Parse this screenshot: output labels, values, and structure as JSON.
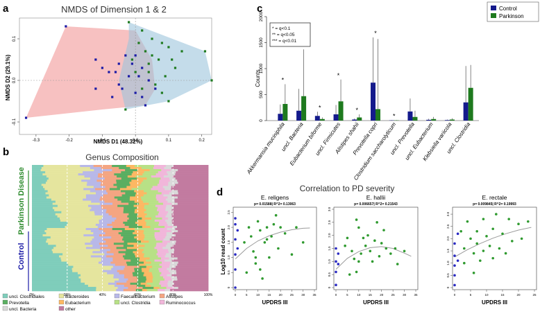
{
  "panels": {
    "a": "a",
    "b": "b",
    "c": "c",
    "d": "d"
  },
  "chart_data": [
    {
      "id": "nmds",
      "type": "scatter",
      "title": "NMDS of Dimension 1 & 2",
      "xlabel": "NMDS D1 (48.32%)",
      "ylabel": "NMDS D2 (29.1%)",
      "xlim": [
        -0.35,
        0.23
      ],
      "ylim": [
        -0.13,
        0.15
      ],
      "xticks": [
        "-0.3",
        "-0.2",
        "-0.1",
        "0.0",
        "0.1",
        "0.2"
      ],
      "xtick_values": [
        -0.3,
        -0.2,
        -0.1,
        0.0,
        0.1,
        0.2
      ],
      "yticks": [
        "-0.1",
        "0.0",
        "0.1"
      ],
      "ytick_values": [
        -0.1,
        0.0,
        0.1
      ],
      "colors": {
        "control": "#1a1aa6",
        "parkinson": "#1f7a1f",
        "control_hull": "#f4a6a6",
        "parkinson_hull": "#9cc5dc"
      },
      "control_hull": [
        [
          -0.21,
          0.13
        ],
        [
          -0.33,
          -0.09
        ],
        [
          -0.1,
          -0.07
        ],
        [
          0.03,
          -0.06
        ],
        [
          0.06,
          -0.02
        ],
        [
          0.05,
          0.05
        ],
        [
          0.0,
          0.12
        ]
      ],
      "parkinson_hull": [
        [
          -0.02,
          0.14
        ],
        [
          0.21,
          0.07
        ],
        [
          0.23,
          0.0
        ],
        [
          0.1,
          -0.05
        ],
        [
          -0.03,
          -0.07
        ],
        [
          -0.05,
          0.0
        ],
        [
          -0.02,
          0.1
        ]
      ],
      "control_points": [
        [
          -0.21,
          0.13
        ],
        [
          -0.33,
          -0.09
        ],
        [
          -0.12,
          0.05
        ],
        [
          -0.1,
          0.03
        ],
        [
          -0.08,
          0.02
        ],
        [
          -0.06,
          0.02
        ],
        [
          -0.05,
          -0.01
        ],
        [
          -0.04,
          -0.02
        ],
        [
          -0.02,
          0.01
        ],
        [
          -0.01,
          0.04
        ],
        [
          0.0,
          -0.03
        ],
        [
          0.01,
          0.01
        ],
        [
          0.02,
          -0.04
        ],
        [
          0.03,
          -0.06
        ],
        [
          0.02,
          0.03
        ],
        [
          -0.03,
          0.06
        ],
        [
          0.04,
          0.0
        ],
        [
          -0.07,
          -0.04
        ],
        [
          0.0,
          0.06
        ],
        [
          -0.12,
          -0.02
        ],
        [
          0.06,
          -0.02
        ],
        [
          -0.05,
          0.04
        ]
      ],
      "parkinson_points": [
        [
          -0.02,
          0.14
        ],
        [
          0.02,
          0.12
        ],
        [
          0.05,
          0.1
        ],
        [
          0.08,
          0.09
        ],
        [
          0.1,
          0.08
        ],
        [
          0.14,
          0.07
        ],
        [
          0.21,
          0.07
        ],
        [
          0.23,
          0.0
        ],
        [
          0.12,
          0.03
        ],
        [
          0.09,
          0.01
        ],
        [
          0.07,
          0.05
        ],
        [
          0.04,
          0.02
        ],
        [
          0.03,
          0.07
        ],
        [
          0.01,
          0.09
        ],
        [
          -0.01,
          0.05
        ],
        [
          0.06,
          -0.01
        ],
        [
          0.08,
          -0.03
        ],
        [
          0.1,
          -0.05
        ],
        [
          0.02,
          -0.02
        ],
        [
          -0.03,
          -0.07
        ],
        [
          0.11,
          0.05
        ],
        [
          0.04,
          0.04
        ],
        [
          0.0,
          0.02
        ],
        [
          0.05,
          0.06
        ]
      ]
    },
    {
      "id": "genus",
      "type": "bar",
      "title": "Genus Composition",
      "group_labels": [
        "Parkinson Disease",
        "Control"
      ],
      "xticks": [
        "0%",
        "20%",
        "40%",
        "60%",
        "80%",
        "100%"
      ],
      "legend": [
        "uncl. Clostridiales",
        "Bacteroides",
        "Faecalibacterium",
        "Alistipes",
        "Prevotella",
        "Eubacterium",
        "uncl. Clostridia",
        "Ruminococcus",
        "uncl. Bacteria",
        "other"
      ],
      "colors": [
        "#7fcdbb",
        "#e5e59e",
        "#b8b8e8",
        "#f4a582",
        "#5aae61",
        "#fdb863",
        "#b8e186",
        "#f1b6da",
        "#d9d9d9",
        "#c27ba0"
      ]
    },
    {
      "id": "counts",
      "type": "bar",
      "title": "",
      "ylabel": "Counts",
      "ylim": [
        0,
        2000
      ],
      "yticks": [
        "0",
        "500",
        "1000",
        "1500",
        "2000"
      ],
      "ytick_values": [
        0,
        500,
        1000,
        1500,
        2000
      ],
      "categories": [
        "Akkermansia muciniphila",
        "uncl. Bacteria",
        "Eubacterium biforme",
        "uncl. Firmicutes",
        "Alistipes shahii",
        "Prevotella copri",
        "Clostridium saccharolyticum",
        "uncl. Prevotella",
        "uncl. Eubacterium",
        "Klebsiella variicola",
        "uncl. Clostridia"
      ],
      "series": [
        {
          "name": "Control",
          "color": "#141a8c",
          "values": [
            130,
            190,
            90,
            120,
            20,
            730,
            5,
            175,
            15,
            10,
            350
          ],
          "errors": [
            180,
            420,
            80,
            180,
            20,
            870,
            5,
            250,
            20,
            10,
            700
          ]
        },
        {
          "name": "Parkinson",
          "color": "#1e7a1e",
          "values": [
            320,
            470,
            30,
            370,
            60,
            220,
            5,
            70,
            30,
            20,
            630
          ],
          "errors": [
            380,
            900,
            30,
            420,
            60,
            1350,
            5,
            120,
            40,
            25,
            440
          ]
        }
      ],
      "stars": [
        "*",
        "*",
        "*",
        "*",
        "*",
        "*",
        "*",
        "",
        "",
        "",
        ""
      ],
      "star_key": [
        "* = q<0.1",
        "** = q<0.05",
        "*** = q<0.01"
      ],
      "legend": [
        "Control",
        "Parkinson"
      ]
    },
    {
      "id": "correlation",
      "type": "scatter",
      "title": "Correlation to PD severity",
      "xlabel": "UPDRS III",
      "ylabel": "Log10 read count",
      "subplots": [
        {
          "title": "E. religens",
          "stat": "p= 0.01588| R^2= 0.13063",
          "xlim": [
            0,
            35
          ],
          "ylim": [
            0,
            2.6
          ],
          "yticks": [
            "0",
            "0.5",
            "1.0",
            "1.5",
            "2.0",
            "2.5"
          ],
          "ytick_values": [
            0,
            0.5,
            1.0,
            1.5,
            2.0,
            2.5
          ],
          "xticks": [
            "0",
            "5",
            "10",
            "15",
            "20",
            "25",
            "30",
            "35"
          ],
          "xtick_values": [
            0,
            5,
            10,
            15,
            20,
            25,
            30,
            35
          ],
          "control": [
            [
              0,
              0.0
            ],
            [
              0,
              0.6
            ],
            [
              0,
              1.1
            ],
            [
              0,
              1.6
            ],
            [
              0,
              2.1
            ],
            [
              0,
              2.3
            ],
            [
              1,
              1.9
            ],
            [
              1,
              1.3
            ]
          ],
          "parkinson": [
            [
              4,
              1.5
            ],
            [
              5,
              0.5
            ],
            [
              6,
              2.0
            ],
            [
              7,
              1.7
            ],
            [
              8,
              1.2
            ],
            [
              9,
              0.8
            ],
            [
              10,
              2.2
            ],
            [
              11,
              1.9
            ],
            [
              12,
              0.3
            ],
            [
              13,
              1.5
            ],
            [
              14,
              2.0
            ],
            [
              15,
              1.0
            ],
            [
              16,
              1.7
            ],
            [
              18,
              2.4
            ],
            [
              19,
              1.3
            ],
            [
              20,
              2.0
            ],
            [
              22,
              1.8
            ],
            [
              25,
              1.1
            ],
            [
              27,
              2.0
            ],
            [
              30,
              1.5
            ],
            [
              9,
              1.0
            ],
            [
              11,
              0.6
            ],
            [
              14,
              1.6
            ],
            [
              17,
              2.1
            ]
          ],
          "curve": [
            [
              0,
              0.95
            ],
            [
              5,
              1.3
            ],
            [
              10,
              1.55
            ],
            [
              15,
              1.72
            ],
            [
              20,
              1.84
            ],
            [
              25,
              1.92
            ],
            [
              30,
              1.97
            ],
            [
              33,
              1.98
            ]
          ]
        },
        {
          "title": "E. hallii",
          "stat": "p= 0.006657| R^2= 0.21543",
          "xlim": [
            0,
            35
          ],
          "ylim": [
            0,
            3.0
          ],
          "yticks": [
            "0",
            "0.5",
            "1.0",
            "1.5",
            "2.0",
            "2.5",
            "3.0"
          ],
          "ytick_values": [
            0,
            0.5,
            1.0,
            1.5,
            2.0,
            2.5,
            3.0
          ],
          "xticks": [
            "0",
            "5",
            "10",
            "15",
            "20",
            "25",
            "30",
            "35"
          ],
          "xtick_values": [
            0,
            5,
            10,
            15,
            20,
            25,
            30,
            35
          ],
          "control": [
            [
              0,
              0.1
            ],
            [
              0,
              0.6
            ],
            [
              0,
              1.0
            ],
            [
              0,
              1.5
            ],
            [
              1,
              0.9
            ],
            [
              1,
              1.3
            ]
          ],
          "parkinson": [
            [
              4,
              1.6
            ],
            [
              5,
              1.9
            ],
            [
              6,
              0.5
            ],
            [
              7,
              1.4
            ],
            [
              8,
              1.1
            ],
            [
              9,
              2.6
            ],
            [
              10,
              1.0
            ],
            [
              10,
              2.3
            ],
            [
              11,
              1.3
            ],
            [
              12,
              1.9
            ],
            [
              13,
              1.6
            ],
            [
              14,
              2.0
            ],
            [
              15,
              1.4
            ],
            [
              16,
              1.0
            ],
            [
              17,
              1.8
            ],
            [
              18,
              2.5
            ],
            [
              19,
              1.2
            ],
            [
              20,
              1.7
            ],
            [
              21,
              2.2
            ],
            [
              22,
              1.5
            ],
            [
              24,
              1.3
            ],
            [
              26,
              1.5
            ],
            [
              27,
              0.9
            ],
            [
              30,
              1.4
            ],
            [
              9,
              0.6
            ]
          ],
          "curve": [
            [
              0,
              0.7
            ],
            [
              5,
              1.12
            ],
            [
              10,
              1.38
            ],
            [
              15,
              1.53
            ],
            [
              20,
              1.57
            ],
            [
              25,
              1.5
            ],
            [
              30,
              1.32
            ],
            [
              33,
              1.2
            ]
          ]
        },
        {
          "title": "E. rectale",
          "stat": "p= 0.009845| R^2= 0.19993",
          "xlim": [
            0,
            25
          ],
          "ylim": [
            0,
            3.2
          ],
          "yticks": [
            "0",
            "0.5",
            "1.0",
            "1.5",
            "2.0",
            "2.5",
            "3.0"
          ],
          "ytick_values": [
            0,
            0.5,
            1.0,
            1.5,
            2.0,
            2.5,
            3.0
          ],
          "xticks": [
            "0",
            "5",
            "10",
            "15",
            "20",
            "25"
          ],
          "xtick_values": [
            0,
            5,
            10,
            15,
            20,
            25
          ],
          "control": [
            [
              0,
              0.1
            ],
            [
              0,
              0.5
            ],
            [
              0,
              0.9
            ],
            [
              0,
              1.3
            ],
            [
              0,
              1.8
            ],
            [
              1,
              2.2
            ],
            [
              1,
              1.1
            ]
          ],
          "parkinson": [
            [
              2,
              2.3
            ],
            [
              3,
              1.6
            ],
            [
              3,
              1.0
            ],
            [
              4,
              2.7
            ],
            [
              5,
              2.0
            ],
            [
              6,
              1.4
            ],
            [
              7,
              2.3
            ],
            [
              7,
              1.8
            ],
            [
              8,
              1.1
            ],
            [
              9,
              2.8
            ],
            [
              9,
              1.5
            ],
            [
              10,
              2.1
            ],
            [
              11,
              1.7
            ],
            [
              12,
              2.4
            ],
            [
              12,
              1.2
            ],
            [
              13,
              3.0
            ],
            [
              14,
              1.6
            ],
            [
              15,
              2.2
            ],
            [
              16,
              1.4
            ],
            [
              17,
              2.8
            ],
            [
              18,
              1.9
            ],
            [
              20,
              2.6
            ],
            [
              21,
              2.0
            ],
            [
              23,
              2.7
            ],
            [
              6,
              0.6
            ]
          ],
          "curve": [
            [
              0,
              1.25
            ],
            [
              4,
              1.55
            ],
            [
              8,
              1.8
            ],
            [
              12,
              2.02
            ],
            [
              16,
              2.2
            ],
            [
              20,
              2.35
            ],
            [
              24,
              2.46
            ]
          ]
        }
      ],
      "colors": {
        "control": "#2929c2",
        "parkinson": "#2f9a2f",
        "curve": "#9a9a9a"
      }
    }
  ]
}
